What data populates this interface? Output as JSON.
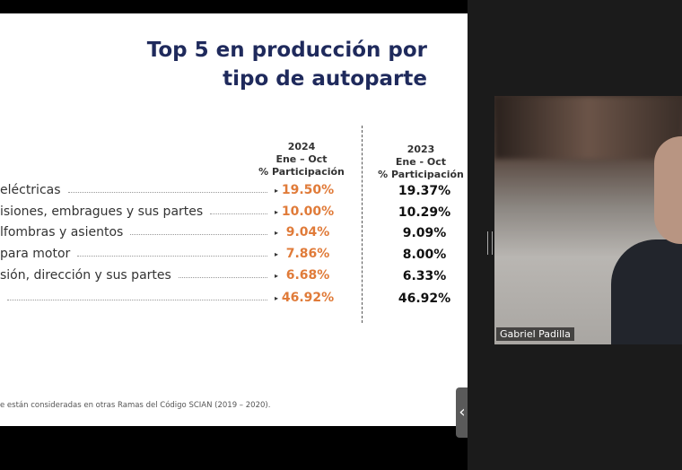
{
  "slide": {
    "title": [
      "Top 5 en producción por",
      "tipo de autoparte"
    ],
    "columns": [
      {
        "year": "2024",
        "period": "Ene – Oct",
        "metric": "% Participación"
      },
      {
        "year": "2023",
        "period": "Ene - Oct",
        "metric": "% Participación"
      }
    ],
    "rows": [
      {
        "label": "eléctricas",
        "v2024": "19.50%",
        "v2023": "19.37%"
      },
      {
        "label": "isiones, embragues y sus partes",
        "v2024": "10.00%",
        "v2023": "10.29%"
      },
      {
        "label": "lfombras y asientos",
        "v2024": "9.04%",
        "v2023": "9.09%"
      },
      {
        "label": "para motor",
        "v2024": "7.86%",
        "v2023": "8.00%"
      },
      {
        "label": "sión, dirección y sus partes",
        "v2024": "6.68%",
        "v2023": "6.33%"
      },
      {
        "v2024": "46.92%",
        "v2023": "46.92%"
      }
    ],
    "footnote": "e están consideradas en otras Ramas del Código SCIAN (2019 – 2020)."
  },
  "participant": {
    "name": "Gabriel Padilla"
  }
}
